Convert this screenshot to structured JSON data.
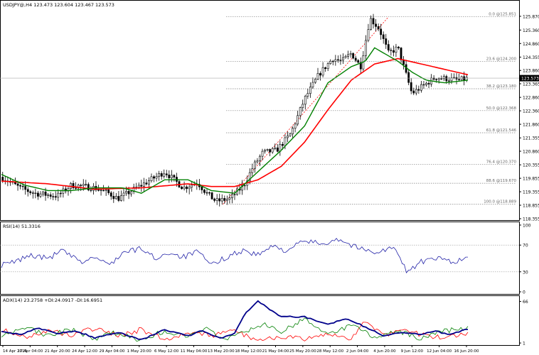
{
  "main_header": "USDJPY@,H4  123.473 123.604 123.467 123.573",
  "rsi_header": "RSI(14) 51.3316",
  "adx_header": "ADX(14) 23.2758 +DI:24.0917 -DI:16.6951",
  "last_price_label": "123.573",
  "colors": {
    "candle": "#000000",
    "ma_fast": "#008000",
    "ma_slow": "#ff0000",
    "rsi_line": "#2323a8",
    "adx_line": "#00008b",
    "plus_di": "#008000",
    "minus_di": "#ff0000",
    "fib_line": "#808080",
    "trend_line": "#ff0000"
  },
  "chart_data": [
    {
      "type": "candlestick",
      "symbol": "USDJPY@",
      "timeframe": "H4",
      "ylim": [
        118.355,
        126.37
      ],
      "y_ticks": [
        "125.870",
        "125.360",
        "124.860",
        "124.355",
        "123.860",
        "123.365",
        "122.860",
        "122.360",
        "121.860",
        "121.355",
        "120.860",
        "120.355",
        "119.855",
        "119.355",
        "118.855",
        "118.355"
      ],
      "x_ticks": [
        "14 Apr 2015",
        "17 Apr 04:00",
        "21 Apr 20:00",
        "24 Apr 12:00",
        "29 Apr 04:00",
        "1 May 20:00",
        "6 May 12:00",
        "11 May 04:00",
        "13 May 20:00",
        "18 May 12:00",
        "21 May 04:00",
        "25 May 20:00",
        "28 May 12:00",
        "2 Jun 04:00",
        "4 Jun 20:00",
        "9 Jun 12:00",
        "12 Jun 04:00",
        "16 Jun 20:00"
      ],
      "last_price": 123.573,
      "fibonacci_levels": [
        {
          "label": "0.0 @125.851",
          "value": 125.851
        },
        {
          "label": "23.6 @124.200",
          "value": 124.2
        },
        {
          "label": "38.2 @123.180",
          "value": 123.18
        },
        {
          "label": "50.0 @122.368",
          "value": 122.368
        },
        {
          "label": "61.8 @121.546",
          "value": 121.546
        },
        {
          "label": "76.4 @120.370",
          "value": 120.37
        },
        {
          "label": "88.6 @119.670",
          "value": 119.67
        },
        {
          "label": "100.0 @118.889",
          "value": 118.889
        }
      ],
      "price_path": {
        "t": [
          0,
          0.04,
          0.07,
          0.12,
          0.15,
          0.2,
          0.23,
          0.25,
          0.3,
          0.35,
          0.37,
          0.39,
          0.42,
          0.44,
          0.46,
          0.49,
          0.52,
          0.54,
          0.56,
          0.59,
          0.62,
          0.65,
          0.68,
          0.71,
          0.73,
          0.75,
          0.77,
          0.79,
          0.81,
          0.83,
          0.85,
          0.88,
          0.93,
          0.98,
          1.0
        ],
        "price": [
          119.9,
          119.5,
          119.3,
          119.2,
          119.6,
          119.5,
          119.3,
          119.1,
          119.6,
          120.1,
          119.8,
          119.5,
          119.7,
          119.3,
          119.0,
          119.1,
          119.6,
          120.3,
          120.8,
          120.9,
          121.5,
          122.8,
          123.7,
          124.3,
          124.2,
          124.5,
          124.0,
          125.8,
          125.4,
          124.5,
          124.7,
          123.0,
          123.6,
          123.5,
          123.57
        ]
      },
      "ma_fast_path": {
        "t": [
          0,
          0.05,
          0.1,
          0.15,
          0.2,
          0.26,
          0.3,
          0.35,
          0.4,
          0.45,
          0.5,
          0.55,
          0.6,
          0.65,
          0.7,
          0.75,
          0.78,
          0.8,
          0.83,
          0.85,
          0.88,
          0.91,
          0.95,
          1.0
        ],
        "price": [
          120.0,
          119.6,
          119.4,
          119.4,
          119.5,
          119.5,
          119.3,
          119.8,
          119.8,
          119.4,
          119.3,
          120.1,
          120.9,
          121.8,
          123.4,
          124.0,
          124.2,
          124.7,
          124.4,
          124.2,
          123.8,
          123.5,
          123.4,
          123.5
        ]
      },
      "ma_slow_path": {
        "t": [
          0,
          0.1,
          0.2,
          0.3,
          0.4,
          0.45,
          0.5,
          0.55,
          0.6,
          0.65,
          0.7,
          0.75,
          0.8,
          0.85,
          0.9,
          0.95,
          1.0
        ],
        "price": [
          119.75,
          119.65,
          119.45,
          119.5,
          119.65,
          119.55,
          119.55,
          119.8,
          120.3,
          121.2,
          122.4,
          123.5,
          124.1,
          124.3,
          124.1,
          123.9,
          123.7
        ]
      }
    },
    {
      "type": "line",
      "indicator": "RSI(14)",
      "value": 51.3316,
      "ylim": [
        0,
        100
      ],
      "y_ticks": [
        "100",
        "70",
        "30",
        "0"
      ],
      "levels": [
        70,
        30
      ],
      "path": {
        "t": [
          0,
          0.03,
          0.06,
          0.1,
          0.13,
          0.17,
          0.2,
          0.23,
          0.26,
          0.3,
          0.33,
          0.36,
          0.39,
          0.42,
          0.45,
          0.49,
          0.52,
          0.55,
          0.58,
          0.61,
          0.65,
          0.69,
          0.72,
          0.75,
          0.78,
          0.81,
          0.84,
          0.87,
          0.9,
          0.94,
          0.97,
          1.0
        ],
        "value": [
          40,
          45,
          55,
          50,
          62,
          44,
          52,
          40,
          58,
          65,
          50,
          59,
          52,
          60,
          40,
          55,
          62,
          55,
          68,
          62,
          76,
          72,
          80,
          70,
          62,
          60,
          67,
          30,
          45,
          50,
          45,
          51
        ]
      }
    },
    {
      "type": "line",
      "indicator": "ADX(14)",
      "values": {
        "adx": 23.2758,
        "plus_di": 24.0917,
        "minus_di": 16.6951
      },
      "y_ticks": [
        "66",
        "1"
      ],
      "adx_path": {
        "t": [
          0,
          0.04,
          0.08,
          0.12,
          0.16,
          0.2,
          0.25,
          0.3,
          0.35,
          0.4,
          0.43,
          0.47,
          0.5,
          0.52,
          0.55,
          0.6,
          0.65,
          0.7,
          0.74,
          0.78,
          0.82,
          0.86,
          0.9,
          0.93,
          0.96,
          1.0
        ],
        "value": [
          20,
          14,
          24,
          16,
          20,
          9,
          18,
          6,
          22,
          12,
          20,
          8,
          16,
          45,
          66,
          42,
          42,
          30,
          40,
          26,
          12,
          18,
          14,
          20,
          14,
          23
        ]
      },
      "plus_di_path": {
        "t": [
          0,
          0.05,
          0.1,
          0.15,
          0.2,
          0.25,
          0.3,
          0.35,
          0.4,
          0.44,
          0.48,
          0.52,
          0.56,
          0.6,
          0.65,
          0.7,
          0.75,
          0.8,
          0.85,
          0.9,
          0.95,
          1.0
        ],
        "value": [
          14,
          26,
          12,
          22,
          8,
          18,
          5,
          20,
          10,
          22,
          6,
          18,
          30,
          20,
          38,
          16,
          28,
          10,
          20,
          8,
          20,
          24
        ]
      },
      "minus_di_path": {
        "t": [
          0,
          0.05,
          0.1,
          0.15,
          0.2,
          0.25,
          0.3,
          0.35,
          0.4,
          0.45,
          0.5,
          0.55,
          0.6,
          0.65,
          0.7,
          0.75,
          0.78,
          0.82,
          0.86,
          0.9,
          0.95,
          1.0
        ],
        "value": [
          22,
          10,
          20,
          14,
          24,
          12,
          22,
          6,
          18,
          12,
          20,
          5,
          12,
          6,
          14,
          8,
          36,
          12,
          25,
          14,
          8,
          16
        ]
      }
    }
  ]
}
